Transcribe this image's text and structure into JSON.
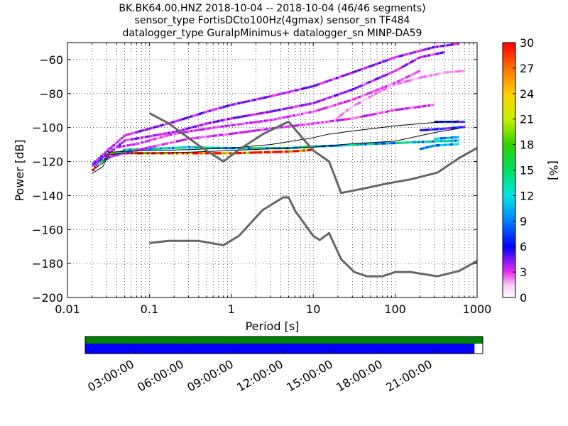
{
  "chart_data": {
    "type": "heatmap",
    "title_lines": [
      "BK.BK64.00.HNZ   2018-10-04 -- 2018-10-04  (46/46 segments)",
      "sensor_type FortisDCto100Hz(4gmax) sensor_sn TF484",
      "datalogger_type GuralpMinimus+ datalogger_sn MINP-DA59"
    ],
    "xlabel": "Period [s]",
    "ylabel": "Power [dB]",
    "xscale": "log",
    "xlim": [
      0.01,
      1000
    ],
    "ylim": [
      -200,
      -50
    ],
    "x_ticks": [
      {
        "value": 0.01,
        "label": "0.01"
      },
      {
        "value": 0.1,
        "label": "0.1"
      },
      {
        "value": 1,
        "label": "1"
      },
      {
        "value": 10,
        "label": "10"
      },
      {
        "value": 100,
        "label": "100"
      },
      {
        "value": 1000,
        "label": "1000"
      }
    ],
    "y_ticks": [
      {
        "value": -60,
        "label": "−60"
      },
      {
        "value": -80,
        "label": "−80"
      },
      {
        "value": -100,
        "label": "−100"
      },
      {
        "value": -120,
        "label": "−120"
      },
      {
        "value": -140,
        "label": "−140"
      },
      {
        "value": -160,
        "label": "−160"
      },
      {
        "value": -180,
        "label": "−180"
      },
      {
        "value": -200,
        "label": "−200"
      }
    ],
    "colorbar": {
      "label": "[%]",
      "min": 0,
      "max": 30,
      "ticks": [
        {
          "value": 0,
          "label": "0"
        },
        {
          "value": 3,
          "label": "3"
        },
        {
          "value": 6,
          "label": "6"
        },
        {
          "value": 9,
          "label": "9"
        },
        {
          "value": 12,
          "label": "12"
        },
        {
          "value": 15,
          "label": "15"
        },
        {
          "value": 18,
          "label": "18"
        },
        {
          "value": 21,
          "label": "21"
        },
        {
          "value": 24,
          "label": "24"
        },
        {
          "value": 27,
          "label": "27"
        },
        {
          "value": 30,
          "label": "30"
        }
      ]
    },
    "noise_models": [
      {
        "name": "high",
        "color": "#666666",
        "points": [
          [
            0.1,
            -91.5
          ],
          [
            0.17,
            -97.4
          ],
          [
            0.4,
            -110.5
          ],
          [
            0.8,
            -120
          ],
          [
            1.24,
            -113
          ],
          [
            2.4,
            -104
          ],
          [
            4.3,
            -98
          ],
          [
            5,
            -96.5
          ],
          [
            6,
            -101
          ],
          [
            10,
            -113.5
          ],
          [
            15.6,
            -120
          ],
          [
            21.9,
            -138.5
          ],
          [
            31.6,
            -137
          ],
          [
            45,
            -135.5
          ],
          [
            70,
            -133.5
          ],
          [
            101,
            -132
          ],
          [
            154,
            -130.5
          ],
          [
            328,
            -126.5
          ],
          [
            600,
            -118
          ],
          [
            1000,
            -112
          ]
        ]
      },
      {
        "name": "low",
        "color": "#666666",
        "points": [
          [
            0.1,
            -168
          ],
          [
            0.17,
            -166.7
          ],
          [
            0.4,
            -166.7
          ],
          [
            0.8,
            -169.2
          ],
          [
            1.24,
            -163.7
          ],
          [
            2.4,
            -148.6
          ],
          [
            4.3,
            -141.1
          ],
          [
            5,
            -141.1
          ],
          [
            6,
            -149
          ],
          [
            10,
            -163.8
          ],
          [
            12,
            -166.2
          ],
          [
            15.6,
            -162.1
          ],
          [
            21.9,
            -177.5
          ],
          [
            31.6,
            -185
          ],
          [
            45,
            -187.5
          ],
          [
            70,
            -187.5
          ],
          [
            101,
            -185
          ],
          [
            154,
            -185
          ],
          [
            328,
            -187.5
          ],
          [
            600,
            -184.4
          ],
          [
            1000,
            -178.5
          ]
        ]
      }
    ],
    "percentile_lines": [
      {
        "name": "lower",
        "color": "#000000",
        "points": [
          [
            0.02,
            -127
          ],
          [
            0.027,
            -123
          ],
          [
            0.032,
            -116
          ],
          [
            0.05,
            -115
          ],
          [
            0.1,
            -115
          ],
          [
            0.3,
            -114.5
          ],
          [
            1,
            -113.5
          ],
          [
            3,
            -112.5
          ],
          [
            10,
            -111.5
          ],
          [
            30,
            -109.5
          ],
          [
            100,
            -108
          ],
          [
            300,
            -103
          ],
          [
            600,
            -100.5
          ]
        ]
      },
      {
        "name": "upper",
        "color": "#000000",
        "points": [
          [
            0.02,
            -125
          ],
          [
            0.027,
            -121
          ],
          [
            0.032,
            -114.5
          ],
          [
            0.05,
            -114
          ],
          [
            0.1,
            -113.5
          ],
          [
            0.3,
            -113
          ],
          [
            1,
            -112
          ],
          [
            3,
            -110
          ],
          [
            10,
            -106
          ],
          [
            15,
            -104
          ],
          [
            30,
            -102
          ],
          [
            100,
            -99
          ],
          [
            300,
            -97
          ],
          [
            600,
            -96
          ]
        ]
      }
    ],
    "density_bands": [
      {
        "points": [
          [
            0.02,
            -126
          ],
          [
            0.03,
            -115.5
          ],
          [
            0.05,
            -115.5
          ],
          [
            1,
            -115.5
          ],
          [
            5,
            -114.5
          ],
          [
            10,
            -113.5
          ]
        ],
        "dominant_value": 30
      },
      {
        "points": [
          [
            0.02,
            -123
          ],
          [
            0.05,
            -113.5
          ],
          [
            0.3,
            -112
          ],
          [
            1,
            -112.5
          ],
          [
            5,
            -112.5
          ],
          [
            10,
            -111.5
          ],
          [
            20,
            -111
          ],
          [
            50,
            -110
          ],
          [
            100,
            -109.5
          ],
          [
            300,
            -108.5
          ],
          [
            600,
            -108
          ]
        ],
        "dominant_value": 12
      },
      {
        "points": [
          [
            0.02,
            -122
          ],
          [
            0.05,
            -105
          ],
          [
            0.2,
            -97
          ],
          [
            0.5,
            -91
          ],
          [
            1,
            -87
          ],
          [
            3,
            -82
          ],
          [
            10,
            -76
          ],
          [
            30,
            -68
          ],
          [
            100,
            -59
          ],
          [
            300,
            -53
          ],
          [
            600,
            -51
          ]
        ],
        "dominant_value": 4
      },
      {
        "points": [
          [
            0.02,
            -123
          ],
          [
            0.05,
            -108
          ],
          [
            0.2,
            -103
          ],
          [
            0.5,
            -98
          ],
          [
            1,
            -95
          ],
          [
            3,
            -91
          ],
          [
            10,
            -86
          ],
          [
            30,
            -78
          ],
          [
            100,
            -67
          ],
          [
            200,
            -59
          ],
          [
            400,
            -56
          ]
        ],
        "dominant_value": 4
      },
      {
        "points": [
          [
            0.03,
            -118
          ],
          [
            0.1,
            -112
          ],
          [
            0.3,
            -107
          ],
          [
            1,
            -104
          ],
          [
            3,
            -101
          ],
          [
            10,
            -98
          ],
          [
            30,
            -95
          ],
          [
            100,
            -90
          ],
          [
            300,
            -87
          ]
        ],
        "dominant_value": 3
      },
      {
        "points": [
          [
            0.03,
            -113
          ],
          [
            0.07,
            -110
          ],
          [
            0.2,
            -104
          ],
          [
            0.7,
            -100
          ],
          [
            3,
            -96
          ],
          [
            10,
            -91
          ],
          [
            30,
            -84
          ],
          [
            100,
            -74
          ],
          [
            200,
            -67
          ]
        ],
        "dominant_value": 3
      },
      {
        "points": [
          [
            18,
            -96
          ],
          [
            30,
            -88
          ],
          [
            60,
            -80
          ],
          [
            100,
            -75
          ],
          [
            200,
            -71
          ],
          [
            400,
            -68
          ],
          [
            700,
            -67
          ]
        ],
        "dominant_value": 2
      },
      {
        "points": [
          [
            200,
            -113
          ],
          [
            300,
            -111
          ],
          [
            600,
            -110
          ]
        ],
        "dominant_value": 9
      },
      {
        "points": [
          [
            300,
            -107
          ],
          [
            600,
            -106
          ]
        ],
        "dominant_value": 11
      },
      {
        "points": [
          [
            200,
            -102
          ],
          [
            400,
            -101
          ],
          [
            700,
            -100
          ]
        ],
        "dominant_value": 6
      },
      {
        "points": [
          [
            300,
            -97
          ],
          [
            700,
            -97
          ]
        ],
        "dominant_value": 6
      }
    ],
    "timeline": {
      "ticks": [
        "03:00:00",
        "06:00:00",
        "09:00:00",
        "12:00:00",
        "15:00:00",
        "18:00:00",
        "21:00:00"
      ],
      "tick_hours": [
        3,
        6,
        9,
        12,
        15,
        18,
        21
      ],
      "range_hours": [
        0,
        24
      ],
      "segments_all": [
        [
          0,
          24
        ]
      ],
      "segments_used": [
        [
          0,
          23.5
        ]
      ],
      "colors": {
        "all": "#008000",
        "used": "#0000ff"
      }
    }
  }
}
